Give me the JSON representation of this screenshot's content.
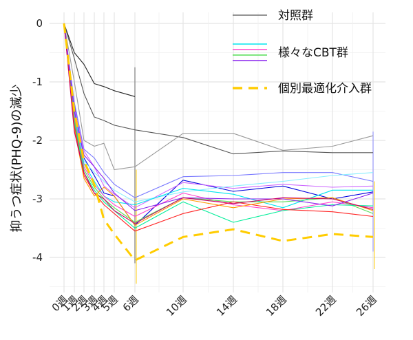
{
  "chart_data": {
    "type": "line",
    "title": "",
    "xlabel": "",
    "ylabel": "抑うつ症状(PHQ-9)の減少",
    "x_weeks": [
      0,
      1,
      2,
      3,
      4,
      5,
      6,
      10,
      14,
      18,
      22,
      26
    ],
    "x_tick_labels": [
      "0週",
      "1週",
      "2週",
      "3週",
      "4週",
      "5週",
      "6週",
      "10週",
      "14週",
      "18週",
      "22週",
      "26週"
    ],
    "y_ticks": [
      0,
      -1,
      -2,
      -3,
      -4
    ],
    "y_tick_labels": [
      "0",
      "-1",
      "-2",
      "-3",
      "-4"
    ],
    "ylim": [
      -4.6,
      0.15
    ],
    "grid": true,
    "legend": {
      "placement": "top-right",
      "entries": [
        {
          "label": "対照群",
          "color": "#555555"
        },
        {
          "label": "様々なCBT群",
          "colors": [
            "#00e5ee",
            "#ff44cc",
            "#55dd55",
            "#8822ee"
          ]
        },
        {
          "label": "個別最適化介入群",
          "color": "#ffcc00",
          "dashed": true
        }
      ]
    },
    "series": [
      {
        "group": "control",
        "color": "#222222",
        "points": [
          [
            0,
            0
          ],
          [
            1,
            -0.5
          ],
          [
            2,
            -0.7
          ],
          [
            3,
            -1.03
          ],
          [
            4,
            -1.08
          ],
          [
            5,
            -1.15
          ],
          [
            6,
            -1.25
          ]
        ]
      },
      {
        "group": "control",
        "color": "#555555",
        "points": [
          [
            0,
            0
          ],
          [
            1,
            -0.6
          ],
          [
            2,
            -1.2
          ],
          [
            3,
            -1.6
          ],
          [
            4,
            -1.66
          ],
          [
            5,
            -1.74
          ],
          [
            6,
            -1.82
          ],
          [
            10,
            -1.95
          ],
          [
            14,
            -2.23
          ],
          [
            18,
            -2.18
          ],
          [
            22,
            -2.21
          ],
          [
            26,
            -2.21
          ]
        ]
      },
      {
        "group": "control",
        "color": "#999999",
        "points": [
          [
            0,
            0
          ],
          [
            1,
            -1.0
          ],
          [
            2,
            -2.0
          ],
          [
            3,
            -2.1
          ],
          [
            4,
            -2.05
          ],
          [
            5,
            -2.5
          ],
          [
            6,
            -2.45
          ],
          [
            10,
            -1.88
          ],
          [
            14,
            -1.88
          ],
          [
            18,
            -2.17
          ],
          [
            22,
            -2.1
          ],
          [
            26,
            -1.92
          ]
        ]
      },
      {
        "group": "cbt",
        "color": "#0000dd",
        "points": [
          [
            0,
            0
          ],
          [
            1,
            -1.4
          ],
          [
            2,
            -2.3
          ],
          [
            3,
            -2.6
          ],
          [
            4,
            -2.9
          ],
          [
            5,
            -2.95
          ],
          [
            6,
            -3.45
          ],
          [
            10,
            -2.68
          ],
          [
            14,
            -2.87
          ],
          [
            18,
            -2.78
          ],
          [
            22,
            -3.0
          ],
          [
            26,
            -2.88
          ]
        ]
      },
      {
        "group": "cbt",
        "color": "#7777ff",
        "points": [
          [
            0,
            0
          ],
          [
            1,
            -1.35
          ],
          [
            2,
            -2.15
          ],
          [
            3,
            -2.3
          ],
          [
            4,
            -2.55
          ],
          [
            5,
            -2.75
          ],
          [
            6,
            -2.98
          ],
          [
            10,
            -2.62
          ],
          [
            14,
            -2.6
          ],
          [
            18,
            -2.55
          ],
          [
            22,
            -2.55
          ],
          [
            26,
            -2.7
          ]
        ]
      },
      {
        "group": "cbt",
        "color": "#cc66ff",
        "points": [
          [
            0,
            0
          ],
          [
            1,
            -1.45
          ],
          [
            2,
            -2.18
          ],
          [
            3,
            -2.45
          ],
          [
            4,
            -2.78
          ],
          [
            5,
            -2.92
          ],
          [
            6,
            -3.15
          ],
          [
            10,
            -2.72
          ],
          [
            14,
            -2.82
          ],
          [
            18,
            -2.75
          ],
          [
            22,
            -2.8
          ],
          [
            26,
            -2.78
          ]
        ]
      },
      {
        "group": "cbt",
        "color": "#88eeff",
        "points": [
          [
            0,
            0
          ],
          [
            1,
            -1.5
          ],
          [
            2,
            -2.35
          ],
          [
            3,
            -2.55
          ],
          [
            4,
            -2.7
          ],
          [
            5,
            -2.85
          ],
          [
            6,
            -3.05
          ],
          [
            10,
            -2.88
          ],
          [
            14,
            -2.78
          ],
          [
            18,
            -2.7
          ],
          [
            22,
            -2.6
          ],
          [
            26,
            -2.55
          ]
        ]
      },
      {
        "group": "cbt",
        "color": "#00e5ee",
        "points": [
          [
            0,
            0
          ],
          [
            1,
            -1.55
          ],
          [
            2,
            -2.4
          ],
          [
            3,
            -2.7
          ],
          [
            4,
            -2.95
          ],
          [
            5,
            -3.05
          ],
          [
            6,
            -3.1
          ],
          [
            10,
            -2.82
          ],
          [
            14,
            -2.92
          ],
          [
            18,
            -3.15
          ],
          [
            22,
            -2.85
          ],
          [
            26,
            -2.85
          ]
        ]
      },
      {
        "group": "cbt",
        "color": "#ff44cc",
        "points": [
          [
            0,
            0
          ],
          [
            1,
            -1.6
          ],
          [
            2,
            -2.45
          ],
          [
            3,
            -2.75
          ],
          [
            4,
            -2.95
          ],
          [
            5,
            -3.1
          ],
          [
            6,
            -3.3
          ],
          [
            10,
            -2.9
          ],
          [
            14,
            -3.1
          ],
          [
            18,
            -3.2
          ],
          [
            22,
            -3.05
          ],
          [
            26,
            -3.15
          ]
        ]
      },
      {
        "group": "cbt",
        "color": "#55dd55",
        "points": [
          [
            0,
            0
          ],
          [
            1,
            -1.65
          ],
          [
            2,
            -2.5
          ],
          [
            3,
            -2.8
          ],
          [
            4,
            -3.0
          ],
          [
            5,
            -3.15
          ],
          [
            6,
            -3.4
          ],
          [
            10,
            -2.98
          ],
          [
            14,
            -3.05
          ],
          [
            18,
            -3.05
          ],
          [
            22,
            -2.98
          ],
          [
            26,
            -3.25
          ]
        ]
      },
      {
        "group": "cbt",
        "color": "#00ee99",
        "points": [
          [
            0,
            0
          ],
          [
            1,
            -1.7
          ],
          [
            2,
            -2.55
          ],
          [
            3,
            -2.85
          ],
          [
            4,
            -3.05
          ],
          [
            5,
            -3.2
          ],
          [
            6,
            -3.5
          ],
          [
            10,
            -3.05
          ],
          [
            14,
            -3.4
          ],
          [
            18,
            -3.2
          ],
          [
            22,
            -3.1
          ],
          [
            26,
            -3.12
          ]
        ]
      },
      {
        "group": "cbt",
        "color": "#ff2222",
        "points": [
          [
            0,
            0
          ],
          [
            1,
            -1.75
          ],
          [
            2,
            -2.6
          ],
          [
            3,
            -2.9
          ],
          [
            4,
            -3.1
          ],
          [
            5,
            -3.25
          ],
          [
            6,
            -3.55
          ],
          [
            10,
            -3.25
          ],
          [
            14,
            -3.05
          ],
          [
            18,
            -3.18
          ],
          [
            22,
            -3.22
          ],
          [
            26,
            -3.3
          ]
        ]
      },
      {
        "group": "cbt",
        "color": "#ff9900",
        "points": [
          [
            0,
            0
          ],
          [
            1,
            -1.8
          ],
          [
            2,
            -2.65
          ],
          [
            3,
            -2.95
          ],
          [
            4,
            -2.8
          ],
          [
            5,
            -2.95
          ],
          [
            6,
            -3.45
          ],
          [
            10,
            -3.0
          ],
          [
            14,
            -3.15
          ],
          [
            18,
            -3.0
          ],
          [
            22,
            -2.98
          ],
          [
            26,
            -3.2
          ]
        ]
      },
      {
        "group": "cbt",
        "color": "#8822ee",
        "points": [
          [
            0,
            0
          ],
          [
            1,
            -1.5
          ],
          [
            2,
            -2.25
          ],
          [
            3,
            -2.45
          ],
          [
            4,
            -2.65
          ],
          [
            5,
            -2.9
          ],
          [
            6,
            -3.2
          ],
          [
            10,
            -2.98
          ],
          [
            14,
            -3.0
          ],
          [
            18,
            -3.0
          ],
          [
            22,
            -3.12
          ],
          [
            26,
            -2.9
          ]
        ]
      },
      {
        "group": "cbt",
        "color": "#cc0066",
        "points": [
          [
            0,
            0
          ],
          [
            1,
            -1.85
          ],
          [
            2,
            -2.55
          ],
          [
            3,
            -2.9
          ],
          [
            4,
            -3.0
          ],
          [
            5,
            -3.2
          ],
          [
            6,
            -3.42
          ],
          [
            10,
            -2.98
          ],
          [
            14,
            -3.08
          ],
          [
            18,
            -2.98
          ],
          [
            22,
            -3.0
          ],
          [
            26,
            -3.18
          ]
        ]
      },
      {
        "group": "optimized",
        "color": "#ffcc00",
        "dashed": true,
        "points": [
          [
            0,
            0
          ],
          [
            1,
            -1.5
          ],
          [
            2,
            -2.35
          ],
          [
            3,
            -2.75
          ],
          [
            4,
            -3.35
          ],
          [
            5,
            -3.6
          ],
          [
            6,
            -4.05
          ],
          [
            10,
            -3.65
          ],
          [
            14,
            -3.52
          ],
          [
            18,
            -3.72
          ],
          [
            22,
            -3.6
          ],
          [
            26,
            -3.65
          ]
        ]
      }
    ],
    "error_bars": [
      {
        "x": 6,
        "low": -4.1,
        "high": -0.75,
        "color": "#666666"
      },
      {
        "x": 6,
        "low": -4.45,
        "high": -2.5,
        "color": "#ffcc00"
      },
      {
        "x": 26,
        "low": -3.9,
        "high": -1.85,
        "color": "#8888ff"
      },
      {
        "x": 26,
        "low": -4.2,
        "high": -2.7,
        "color": "#ffcc00"
      }
    ]
  }
}
